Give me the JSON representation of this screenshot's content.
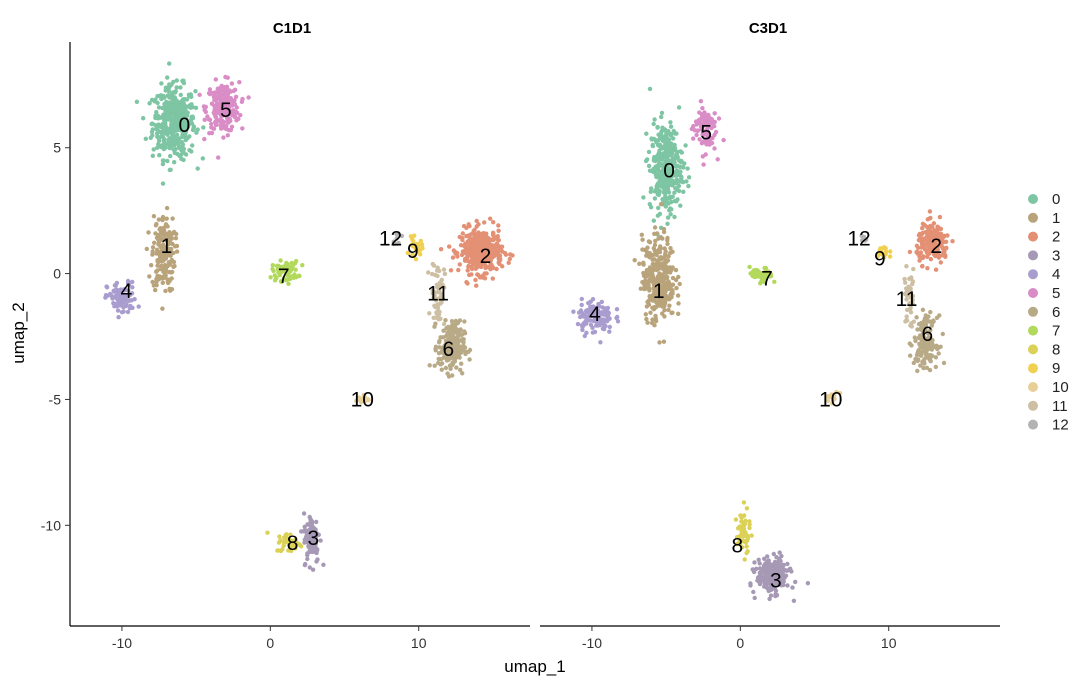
{
  "chart_data": {
    "type": "scatter",
    "xlabel": "umap_1",
    "ylabel": "umap_2",
    "xlim": [
      -13.5,
      17.5
    ],
    "ylim": [
      -14,
      9.2
    ],
    "xticks": [
      -10,
      0,
      10
    ],
    "yticks": [
      -10,
      -5,
      0,
      5
    ],
    "grid": false,
    "legend_position": "right",
    "colors": {
      "0": "#7dc5a3",
      "1": "#b9a37a",
      "2": "#e39075",
      "3": "#a699b5",
      "4": "#a99dcf",
      "5": "#d98cc6",
      "6": "#b9aa87",
      "7": "#b2d95c",
      "8": "#dad156",
      "9": "#f0d050",
      "10": "#e8cf98",
      "11": "#cdbfa3",
      "12": "#b3b3b3"
    },
    "legend": [
      "0",
      "1",
      "2",
      "3",
      "4",
      "5",
      "6",
      "7",
      "8",
      "9",
      "10",
      "11",
      "12"
    ],
    "panels": [
      {
        "title": "C1D1",
        "clusters": [
          {
            "id": "0",
            "center": [
              -6.5,
              6.0
            ],
            "spread": [
              1.3,
              1.3
            ],
            "n": 420,
            "label_pos": [
              -5.8,
              5.9
            ]
          },
          {
            "id": "5",
            "center": [
              -3.2,
              6.6
            ],
            "spread": [
              1.0,
              0.9
            ],
            "n": 230,
            "label_pos": [
              -3.0,
              6.5
            ]
          },
          {
            "id": "1",
            "center": [
              -7.2,
              0.8
            ],
            "spread": [
              0.7,
              1.4
            ],
            "n": 170,
            "label_pos": [
              -7.0,
              1.1
            ]
          },
          {
            "id": "4",
            "center": [
              -10.0,
              -1.0
            ],
            "spread": [
              0.9,
              0.6
            ],
            "n": 90,
            "label_pos": [
              -9.7,
              -0.7
            ]
          },
          {
            "id": "7",
            "center": [
              1.0,
              0.1
            ],
            "spread": [
              0.8,
              0.35
            ],
            "n": 70,
            "label_pos": [
              0.9,
              -0.1
            ]
          },
          {
            "id": "2",
            "center": [
              14.2,
              0.9
            ],
            "spread": [
              1.3,
              0.8
            ],
            "n": 380,
            "label_pos": [
              14.5,
              0.7
            ]
          },
          {
            "id": "9",
            "center": [
              9.8,
              1.0
            ],
            "spread": [
              0.4,
              0.35
            ],
            "n": 25,
            "label_pos": [
              9.6,
              0.9
            ]
          },
          {
            "id": "12",
            "center": [
              8.5,
              1.4
            ],
            "spread": [
              0.3,
              0.2
            ],
            "n": 8,
            "label_pos": [
              8.1,
              1.4
            ]
          },
          {
            "id": "11",
            "center": [
              11.3,
              -0.8
            ],
            "spread": [
              0.4,
              1.2
            ],
            "n": 60,
            "label_pos": [
              11.3,
              -0.8
            ]
          },
          {
            "id": "6",
            "center": [
              12.2,
              -2.9
            ],
            "spread": [
              0.8,
              0.9
            ],
            "n": 210,
            "label_pos": [
              12.0,
              -3.0
            ]
          },
          {
            "id": "10",
            "center": [
              6.2,
              -5.0
            ],
            "spread": [
              0.4,
              0.15
            ],
            "n": 18,
            "label_pos": [
              6.2,
              -5.0
            ]
          },
          {
            "id": "3",
            "center": [
              2.8,
              -10.5
            ],
            "spread": [
              0.5,
              0.9
            ],
            "n": 110,
            "label_pos": [
              2.9,
              -10.5
            ]
          },
          {
            "id": "8",
            "center": [
              1.3,
              -10.7
            ],
            "spread": [
              0.8,
              0.35
            ],
            "n": 40,
            "label_pos": [
              1.5,
              -10.7
            ]
          }
        ]
      },
      {
        "title": "C3D1",
        "clusters": [
          {
            "id": "0",
            "center": [
              -5.0,
              4.2
            ],
            "spread": [
              1.0,
              1.6
            ],
            "n": 330,
            "label_pos": [
              -4.8,
              4.1
            ]
          },
          {
            "id": "5",
            "center": [
              -2.4,
              5.8
            ],
            "spread": [
              0.7,
              0.9
            ],
            "n": 90,
            "label_pos": [
              -2.3,
              5.6
            ]
          },
          {
            "id": "1",
            "center": [
              -5.5,
              -0.2
            ],
            "spread": [
              1.0,
              1.5
            ],
            "n": 320,
            "label_pos": [
              -5.5,
              -0.7
            ]
          },
          {
            "id": "4",
            "center": [
              -9.8,
              -1.7
            ],
            "spread": [
              1.1,
              0.6
            ],
            "n": 120,
            "label_pos": [
              -9.8,
              -1.6
            ]
          },
          {
            "id": "7",
            "center": [
              1.4,
              -0.1
            ],
            "spread": [
              0.7,
              0.3
            ],
            "n": 45,
            "label_pos": [
              1.8,
              -0.2
            ]
          },
          {
            "id": "2",
            "center": [
              13.0,
              1.2
            ],
            "spread": [
              1.0,
              0.7
            ],
            "n": 170,
            "label_pos": [
              13.2,
              1.1
            ]
          },
          {
            "id": "9",
            "center": [
              9.6,
              0.8
            ],
            "spread": [
              0.4,
              0.35
            ],
            "n": 18,
            "label_pos": [
              9.4,
              0.6
            ]
          },
          {
            "id": "12",
            "center": [
              8.3,
              1.4
            ],
            "spread": [
              0.3,
              0.2
            ],
            "n": 6,
            "label_pos": [
              8.0,
              1.4
            ]
          },
          {
            "id": "11",
            "center": [
              11.4,
              -1.0
            ],
            "spread": [
              0.35,
              1.1
            ],
            "n": 40,
            "label_pos": [
              11.2,
              -1.0
            ]
          },
          {
            "id": "6",
            "center": [
              12.5,
              -2.7
            ],
            "spread": [
              0.7,
              0.9
            ],
            "n": 150,
            "label_pos": [
              12.6,
              -2.4
            ]
          },
          {
            "id": "10",
            "center": [
              6.2,
              -4.9
            ],
            "spread": [
              0.4,
              0.2
            ],
            "n": 15,
            "label_pos": [
              6.1,
              -5.0
            ]
          },
          {
            "id": "3",
            "center": [
              2.2,
              -12.0
            ],
            "spread": [
              1.0,
              0.6
            ],
            "n": 260,
            "label_pos": [
              2.4,
              -12.2
            ]
          },
          {
            "id": "8",
            "center": [
              0.2,
              -10.3
            ],
            "spread": [
              0.4,
              0.8
            ],
            "n": 55,
            "label_pos": [
              -0.2,
              -10.8
            ]
          }
        ]
      }
    ]
  }
}
